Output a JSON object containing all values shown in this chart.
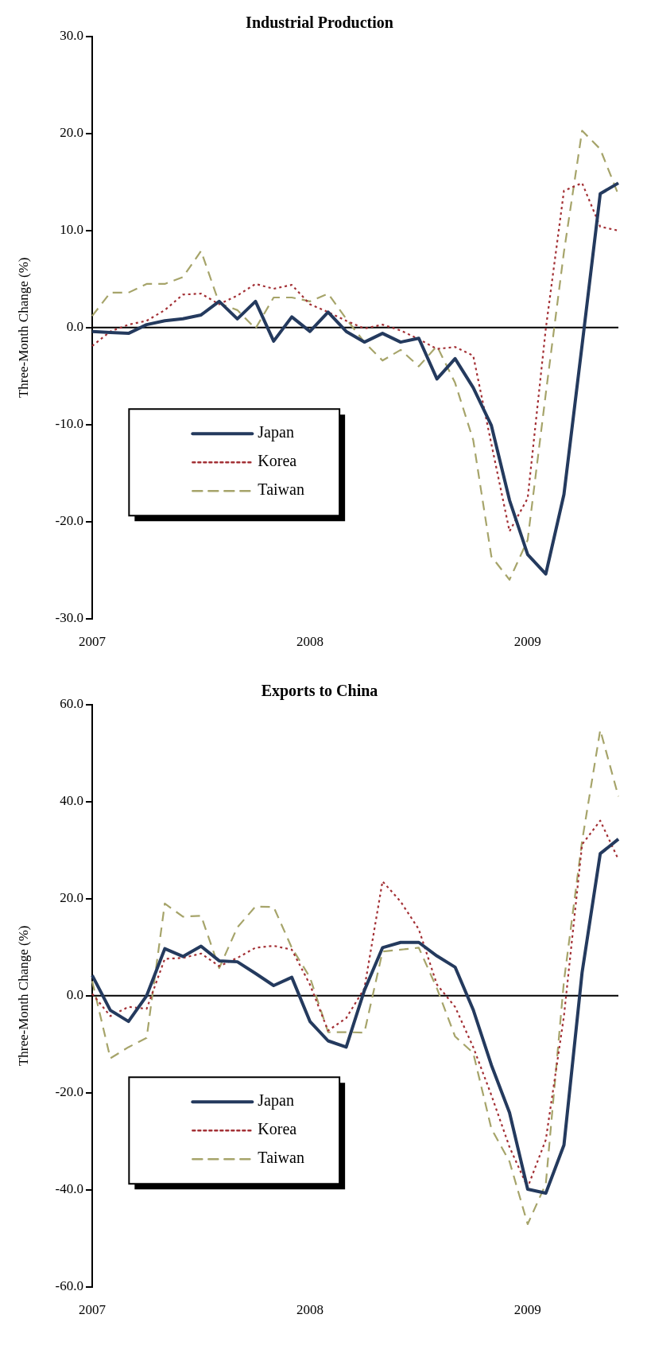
{
  "chart_data": [
    {
      "type": "line",
      "title": "Industrial Production",
      "ylabel": "Three-Month Change (%)",
      "categories": [
        "2007",
        null,
        null,
        null,
        null,
        null,
        null,
        null,
        null,
        null,
        null,
        null,
        "2008",
        null,
        null,
        null,
        null,
        null,
        null,
        null,
        null,
        null,
        null,
        null,
        "2009",
        null,
        null,
        null,
        null,
        null
      ],
      "ylim": [
        -30,
        30
      ],
      "yticks": [
        {
          "value": 30,
          "label": "30.0"
        },
        {
          "value": 20,
          "label": "20.0"
        },
        {
          "value": 10,
          "label": "10.0"
        },
        {
          "value": 0,
          "label": "0.0"
        },
        {
          "value": -10,
          "label": "-10.0"
        },
        {
          "value": -20,
          "label": "-20.0"
        },
        {
          "value": -30,
          "label": "-30.0"
        }
      ],
      "grid": false,
      "legend": "bottom left",
      "ref_lines": [
        {
          "axis": "y",
          "value": 0,
          "color": "#000000"
        }
      ],
      "series": [
        {
          "name": "Japan",
          "color": "#243a5e",
          "line_style": "solid",
          "values": [
            -0.4,
            -0.5,
            -0.6,
            0.3,
            0.7,
            0.9,
            1.3,
            2.7,
            0.9,
            2.7,
            -1.4,
            1.1,
            -0.4,
            1.6,
            -0.4,
            -1.5,
            -0.6,
            -1.5,
            -1.1,
            -5.3,
            -3.2,
            -6.2,
            -10.1,
            -17.8,
            -23.4,
            -25.4,
            -17.2,
            -1.8,
            13.8,
            14.9
          ]
        },
        {
          "name": "Korea",
          "color": "#a33035",
          "line_style": "dotted",
          "values": [
            -1.9,
            -0.4,
            0.3,
            0.7,
            1.8,
            3.4,
            3.5,
            2.4,
            3.3,
            4.5,
            4.0,
            4.4,
            2.4,
            1.6,
            0.7,
            -0.1,
            0.3,
            -0.3,
            -1.2,
            -2.2,
            -2.0,
            -2.9,
            -12.0,
            -21.0,
            -17.6,
            -0.1,
            14.1,
            14.9,
            10.4,
            10.0
          ]
        },
        {
          "name": "Taiwan",
          "color": "#a6a46a",
          "line_style": "dashed",
          "values": [
            1.2,
            3.6,
            3.6,
            4.5,
            4.5,
            5.2,
            7.9,
            2.5,
            1.8,
            -0.1,
            3.1,
            3.1,
            2.7,
            3.5,
            0.9,
            -1.5,
            -3.4,
            -2.3,
            -4.0,
            -1.9,
            -5.7,
            -11.6,
            -23.6,
            -26.0,
            -21.9,
            -6.8,
            7.8,
            20.3,
            18.4,
            13.7
          ]
        }
      ]
    },
    {
      "type": "line",
      "title": "Exports to China",
      "ylabel": "Three-Month Change (%)",
      "categories": [
        "2007",
        null,
        null,
        null,
        null,
        null,
        null,
        null,
        null,
        null,
        null,
        null,
        "2008",
        null,
        null,
        null,
        null,
        null,
        null,
        null,
        null,
        null,
        null,
        null,
        "2009",
        null,
        null,
        null,
        null,
        null
      ],
      "ylim": [
        -60,
        60
      ],
      "yticks": [
        {
          "value": 60,
          "label": "60.0"
        },
        {
          "value": 40,
          "label": "40.0"
        },
        {
          "value": 20,
          "label": "20.0"
        },
        {
          "value": 0,
          "label": "0.0"
        },
        {
          "value": -20,
          "label": "-20.0"
        },
        {
          "value": -40,
          "label": "-40.0"
        },
        {
          "value": -60,
          "label": "-60.0"
        }
      ],
      "grid": false,
      "legend": "bottom left",
      "ref_lines": [
        {
          "axis": "y",
          "value": 0,
          "color": "#000000"
        }
      ],
      "series": [
        {
          "name": "Japan",
          "color": "#243a5e",
          "line_style": "solid",
          "values": [
            4.2,
            -3.0,
            -5.3,
            0.0,
            9.7,
            8.1,
            10.2,
            7.2,
            7.0,
            4.6,
            2.1,
            3.8,
            -5.3,
            -9.3,
            -10.6,
            1.1,
            9.9,
            11.0,
            11.0,
            8.2,
            5.9,
            -2.9,
            -14.3,
            -24.1,
            -39.9,
            -40.7,
            -30.8,
            4.8,
            29.3,
            32.3
          ]
        },
        {
          "name": "Korea",
          "color": "#a33035",
          "line_style": "dotted",
          "values": [
            0.4,
            -4.2,
            -2.3,
            -2.7,
            7.6,
            7.8,
            8.7,
            6.1,
            7.8,
            9.9,
            10.3,
            9.5,
            2.3,
            -7.2,
            -4.6,
            1.5,
            23.6,
            19.4,
            13.7,
            2.3,
            -2.3,
            -10.6,
            -20.5,
            -31.2,
            -39.5,
            -29.7,
            -4.2,
            31.2,
            36.1,
            28.1
          ]
        },
        {
          "name": "Taiwan",
          "color": "#a6a46a",
          "line_style": "dashed",
          "values": [
            3.0,
            -12.9,
            -10.6,
            -8.7,
            19.0,
            16.3,
            16.5,
            5.7,
            14.1,
            18.4,
            18.3,
            9.9,
            3.8,
            -7.5,
            -7.5,
            -7.6,
            9.1,
            9.5,
            9.9,
            1.5,
            -8.4,
            -11.8,
            -27.4,
            -34.2,
            -47.1,
            -38.8,
            3.0,
            31.9,
            54.8,
            41.1
          ]
        }
      ]
    }
  ]
}
